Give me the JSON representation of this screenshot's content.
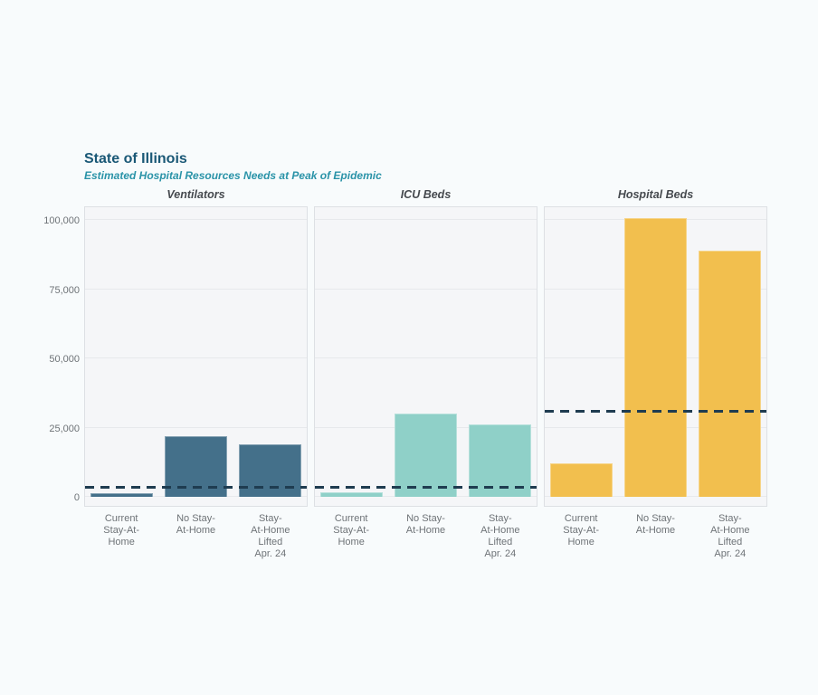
{
  "header": {
    "title": "State of Illinois",
    "subtitle": "Estimated Hospital Resources Needs at Peak of Epidemic"
  },
  "colors": {
    "page_background": "#f8fbfc",
    "title_text": "#1a5876",
    "subtitle_text": "#2a93a8",
    "ventilators_bar": "#44708a",
    "icu_beds_bar": "#8fd0c8",
    "hospital_beds_bar": "#f2bf4e",
    "dashed_line": "#1f3c50",
    "axis_text": "#6e7377"
  },
  "chart_data": {
    "type": "bar",
    "title": "State of Illinois",
    "subtitle": "Estimated Hospital Resources Needs at Peak of Epidemic",
    "categories": [
      "Current Stay-At-Home",
      "No Stay-At-Home",
      "Stay-At-Home Lifted Apr. 24"
    ],
    "tick_label_text": [
      "Current\nStay-At-\nHome",
      "No Stay-\nAt-Home",
      "Stay-\nAt-Home\nLifted\nApr. 24"
    ],
    "ylim": [
      0,
      105000
    ],
    "yticks": [
      0,
      25000,
      50000,
      75000,
      100000
    ],
    "ytick_labels": [
      "0",
      "25,000",
      "50,000",
      "75,000",
      "100,000"
    ],
    "grid": true,
    "legend": "none",
    "dashed_line_color": "#1f3c50",
    "panels": [
      {
        "title": "Ventilators",
        "color": "#44708a",
        "values": [
          1400,
          22000,
          19000
        ],
        "dashed_line": 3300
      },
      {
        "title": "ICU Beds",
        "color": "#8fd0c8",
        "values": [
          1800,
          30000,
          26000
        ],
        "dashed_line": 3500
      },
      {
        "title": "Hospital Beds",
        "color": "#f2bf4e",
        "values": [
          12000,
          100500,
          89000
        ],
        "dashed_line": 31000
      }
    ]
  }
}
